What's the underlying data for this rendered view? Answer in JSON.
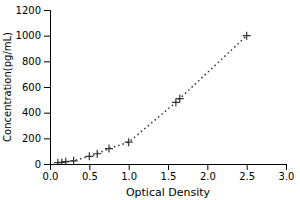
{
  "chart_data": {
    "type": "line",
    "xlabel": "Optical Density",
    "ylabel": "Concentration(pg/mL)",
    "x": [
      0.1,
      0.15,
      0.2,
      0.3,
      0.5,
      0.6,
      0.75,
      1.0,
      1.6,
      1.65,
      2.5
    ],
    "values": [
      10,
      12,
      18,
      25,
      60,
      80,
      120,
      170,
      480,
      510,
      1000
    ],
    "xlim": [
      0,
      3
    ],
    "ylim": [
      0,
      1200
    ],
    "xticks": [
      {
        "value": 0,
        "label": "0.0"
      },
      0.5,
      {
        "value": 1,
        "label": "1.0"
      },
      1.5,
      {
        "value": 2,
        "label": "2.0"
      },
      2.5,
      {
        "value": 3,
        "label": "3.0"
      }
    ],
    "yticks": [
      0,
      200,
      400,
      600,
      800,
      1000,
      1200
    ],
    "color": "#333333",
    "marker": "plus",
    "line_style": "dotted"
  }
}
